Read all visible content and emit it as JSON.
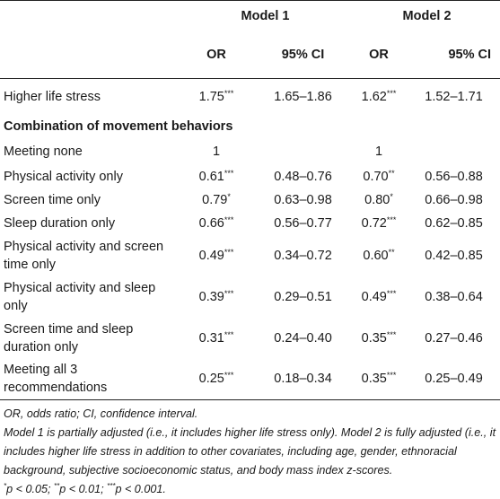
{
  "header": {
    "model1": "Model 1",
    "model2": "Model 2",
    "or": "OR",
    "ci": "95% CI"
  },
  "rows": [
    {
      "label": "Higher life stress",
      "or1": "1.75",
      "sig1": "***",
      "ci1": "1.65–1.86",
      "or2": "1.62",
      "sig2": "***",
      "ci2": "1.52–1.71"
    },
    {
      "section": "Combination of movement behaviors"
    },
    {
      "label": "Meeting none",
      "or1": "1",
      "sig1": "",
      "ci1": "",
      "or2": "1",
      "sig2": "",
      "ci2": ""
    },
    {
      "label": "Physical activity only",
      "or1": "0.61",
      "sig1": "***",
      "ci1": "0.48–0.76",
      "or2": "0.70",
      "sig2": "**",
      "ci2": "0.56–0.88"
    },
    {
      "label": "Screen time only",
      "or1": "0.79",
      "sig1": "*",
      "ci1": "0.63–0.98",
      "or2": "0.80",
      "sig2": "*",
      "ci2": "0.66–0.98"
    },
    {
      "label": "Sleep duration only",
      "or1": "0.66",
      "sig1": "***",
      "ci1": "0.56–0.77",
      "or2": "0.72",
      "sig2": "***",
      "ci2": "0.62–0.85"
    },
    {
      "label": "Physical activity and screen time only",
      "or1": "0.49",
      "sig1": "***",
      "ci1": "0.34–0.72",
      "or2": "0.60",
      "sig2": "**",
      "ci2": "0.42–0.85"
    },
    {
      "label": "Physical activity and sleep only",
      "or1": "0.39",
      "sig1": "***",
      "ci1": "0.29–0.51",
      "or2": "0.49",
      "sig2": "***",
      "ci2": "0.38–0.64"
    },
    {
      "label": "Screen time and sleep duration only",
      "or1": "0.31",
      "sig1": "***",
      "ci1": "0.24–0.40",
      "or2": "0.35",
      "sig2": "***",
      "ci2": "0.27–0.46"
    },
    {
      "label": "Meeting all 3 recommendations",
      "or1": "0.25",
      "sig1": "***",
      "ci1": "0.18–0.34",
      "or2": "0.35",
      "sig2": "***",
      "ci2": "0.25–0.49"
    }
  ],
  "notes": {
    "abbrev": "OR, odds ratio; CI, confidence interval.",
    "models": "Model 1 is partially adjusted (i.e., it includes higher life stress only). Model 2 is fully adjusted (i.e., it includes higher life stress in addition to other covariates, including age, gender, ethnoracial background, subjective socioeconomic status, and body mass index z-scores.",
    "sig_mark1": "*",
    "sig_text1": "p < 0.05; ",
    "sig_mark2": "**",
    "sig_text2": "p < 0.01; ",
    "sig_mark3": "***",
    "sig_text3": "p < 0.001."
  }
}
